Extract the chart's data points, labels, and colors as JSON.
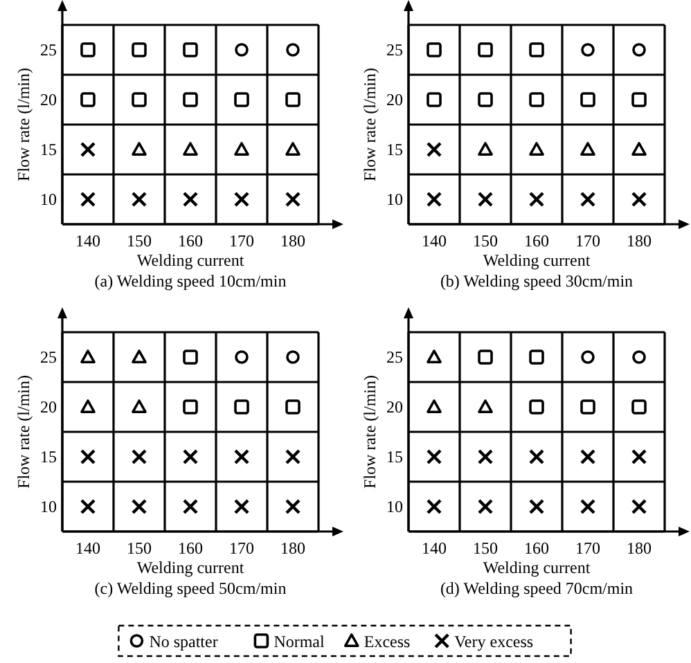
{
  "chart_data": [
    {
      "type": "scatter",
      "title": "(a) Welding speed 10cm/min",
      "xlabel": "Welding current",
      "ylabel": "Flow rate  (l/min)",
      "xlim": [
        135,
        185
      ],
      "ylim": [
        7.5,
        27.5
      ],
      "xticks": [
        {
          "value": 135,
          "label": null
        },
        140,
        {
          "value": 145,
          "label": null
        },
        150,
        {
          "value": 155,
          "label": null
        },
        160,
        {
          "value": 165,
          "label": null
        },
        170,
        {
          "value": 175,
          "label": null
        },
        180,
        {
          "value": 185,
          "label": null
        }
      ],
      "yticks": [
        {
          "value": 7.5,
          "label": null
        },
        10,
        {
          "value": 12.5,
          "label": null
        },
        15,
        {
          "value": 17.5,
          "label": null
        },
        20,
        {
          "value": 22.5,
          "label": null
        },
        25,
        {
          "value": 27.5,
          "label": null
        }
      ],
      "grid": true,
      "legend": false,
      "series": [
        {
          "marker": "circle",
          "color": "#000000",
          "x": [
            170,
            180
          ],
          "values": [
            25,
            25
          ]
        },
        {
          "marker": "square",
          "color": "#000000",
          "x": [
            140,
            150,
            160,
            140,
            150,
            160,
            170,
            180
          ],
          "values": [
            25,
            25,
            25,
            20,
            20,
            20,
            20,
            20
          ]
        },
        {
          "marker": "triangle",
          "color": "#000000",
          "x": [
            150,
            160,
            170,
            180
          ],
          "values": [
            15,
            15,
            15,
            15
          ]
        },
        {
          "marker": "cross",
          "color": "#000000",
          "x": [
            140,
            140,
            150,
            160,
            170,
            180
          ],
          "values": [
            15,
            10,
            10,
            10,
            10,
            10
          ]
        }
      ]
    },
    {
      "type": "scatter",
      "title": "(b) Welding speed 30cm/min",
      "xlabel": "Welding current",
      "ylabel": "Flow rate  (l/min)",
      "xlim": [
        135,
        185
      ],
      "ylim": [
        7.5,
        27.5
      ],
      "xticks": [
        {
          "value": 135,
          "label": null
        },
        140,
        {
          "value": 145,
          "label": null
        },
        150,
        {
          "value": 155,
          "label": null
        },
        160,
        {
          "value": 165,
          "label": null
        },
        170,
        {
          "value": 175,
          "label": null
        },
        180,
        {
          "value": 185,
          "label": null
        }
      ],
      "yticks": [
        {
          "value": 7.5,
          "label": null
        },
        10,
        {
          "value": 12.5,
          "label": null
        },
        15,
        {
          "value": 17.5,
          "label": null
        },
        20,
        {
          "value": 22.5,
          "label": null
        },
        25,
        {
          "value": 27.5,
          "label": null
        }
      ],
      "grid": true,
      "legend": false,
      "series": [
        {
          "marker": "circle",
          "color": "#000000",
          "x": [
            170,
            180
          ],
          "values": [
            25,
            25
          ]
        },
        {
          "marker": "square",
          "color": "#000000",
          "x": [
            140,
            150,
            160,
            140,
            150,
            160,
            170,
            180
          ],
          "values": [
            25,
            25,
            25,
            20,
            20,
            20,
            20,
            20
          ]
        },
        {
          "marker": "triangle",
          "color": "#000000",
          "x": [
            150,
            160,
            170,
            180
          ],
          "values": [
            15,
            15,
            15,
            15
          ]
        },
        {
          "marker": "cross",
          "color": "#000000",
          "x": [
            140,
            140,
            150,
            160,
            170,
            180
          ],
          "values": [
            15,
            10,
            10,
            10,
            10,
            10
          ]
        }
      ]
    },
    {
      "type": "scatter",
      "title": "(c) Welding speed 50cm/min",
      "xlabel": "Welding current",
      "ylabel": "Flow rate  (l/min)",
      "xlim": [
        135,
        185
      ],
      "ylim": [
        7.5,
        27.5
      ],
      "xticks": [
        {
          "value": 135,
          "label": null
        },
        140,
        {
          "value": 145,
          "label": null
        },
        150,
        {
          "value": 155,
          "label": null
        },
        160,
        {
          "value": 165,
          "label": null
        },
        170,
        {
          "value": 175,
          "label": null
        },
        180,
        {
          "value": 185,
          "label": null
        }
      ],
      "yticks": [
        {
          "value": 7.5,
          "label": null
        },
        10,
        {
          "value": 12.5,
          "label": null
        },
        15,
        {
          "value": 17.5,
          "label": null
        },
        20,
        {
          "value": 22.5,
          "label": null
        },
        25,
        {
          "value": 27.5,
          "label": null
        }
      ],
      "grid": true,
      "legend": false,
      "series": [
        {
          "marker": "circle",
          "color": "#000000",
          "x": [
            170,
            180
          ],
          "values": [
            25,
            25
          ]
        },
        {
          "marker": "square",
          "color": "#000000",
          "x": [
            160,
            160,
            170,
            180
          ],
          "values": [
            25,
            20,
            20,
            20
          ]
        },
        {
          "marker": "triangle",
          "color": "#000000",
          "x": [
            140,
            150,
            140,
            150
          ],
          "values": [
            25,
            25,
            20,
            20
          ]
        },
        {
          "marker": "cross",
          "color": "#000000",
          "x": [
            140,
            150,
            160,
            170,
            180,
            140,
            150,
            160,
            170,
            180
          ],
          "values": [
            15,
            15,
            15,
            15,
            15,
            10,
            10,
            10,
            10,
            10
          ]
        }
      ]
    },
    {
      "type": "scatter",
      "title": "(d) Welding speed 70cm/min",
      "xlabel": "Welding current",
      "ylabel": "Flow rate  (l/min)",
      "xlim": [
        135,
        185
      ],
      "ylim": [
        7.5,
        27.5
      ],
      "xticks": [
        {
          "value": 135,
          "label": null
        },
        140,
        {
          "value": 145,
          "label": null
        },
        150,
        {
          "value": 155,
          "label": null
        },
        160,
        {
          "value": 165,
          "label": null
        },
        170,
        {
          "value": 175,
          "label": null
        },
        180,
        {
          "value": 185,
          "label": null
        }
      ],
      "yticks": [
        {
          "value": 7.5,
          "label": null
        },
        10,
        {
          "value": 12.5,
          "label": null
        },
        15,
        {
          "value": 17.5,
          "label": null
        },
        20,
        {
          "value": 22.5,
          "label": null
        },
        25,
        {
          "value": 27.5,
          "label": null
        }
      ],
      "grid": true,
      "legend": "bottom",
      "series": [
        {
          "name": "No spatter",
          "marker": "circle",
          "color": "#000000",
          "x": [
            170,
            180
          ],
          "values": [
            25,
            25
          ]
        },
        {
          "name": "Normal",
          "marker": "square",
          "color": "#000000",
          "x": [
            150,
            160,
            160,
            170,
            180
          ],
          "values": [
            25,
            25,
            20,
            20,
            20
          ]
        },
        {
          "name": "Excess",
          "marker": "triangle",
          "color": "#000000",
          "x": [
            140,
            140,
            150
          ],
          "values": [
            25,
            20,
            20
          ]
        },
        {
          "name": "Very excess",
          "marker": "cross",
          "color": "#000000",
          "x": [
            140,
            150,
            160,
            170,
            180,
            140,
            150,
            160,
            170,
            180
          ],
          "values": [
            15,
            15,
            15,
            15,
            15,
            10,
            10,
            10,
            10,
            10
          ]
        }
      ]
    }
  ]
}
